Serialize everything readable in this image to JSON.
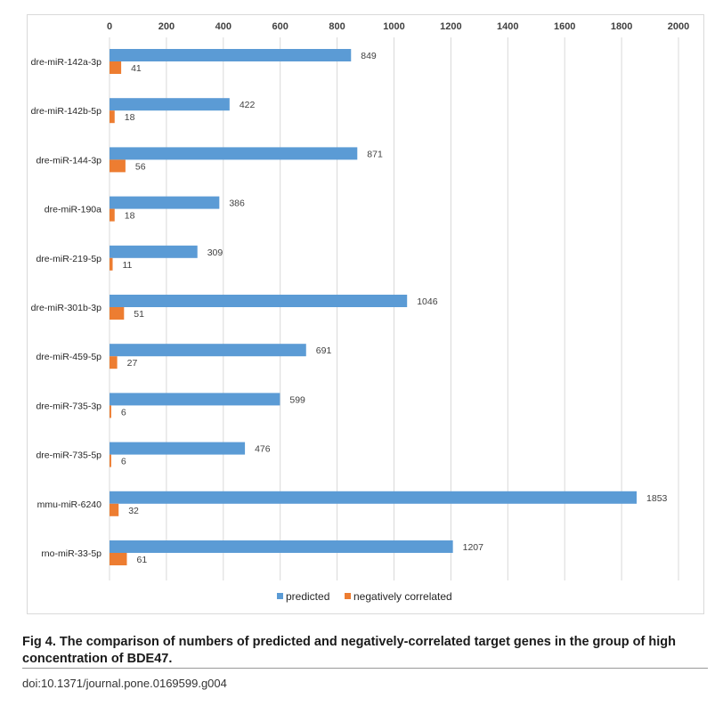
{
  "chart_data": {
    "type": "bar",
    "orientation": "horizontal",
    "title": "",
    "xlabel": "",
    "ylabel": "",
    "xlim": [
      0,
      2000
    ],
    "x_ticks": [
      0,
      200,
      400,
      600,
      800,
      1000,
      1200,
      1400,
      1600,
      1800,
      2000
    ],
    "x_tick_labels": [
      "0",
      "200",
      "400",
      "600",
      "800",
      "1000",
      "1200",
      "1400",
      "1600",
      "1800",
      "2000"
    ],
    "x_axis_position": "top",
    "grid": "vertical",
    "legend_position": "bottom",
    "categories": [
      "dre-miR-142a-3p",
      "dre-miR-142b-5p",
      "dre-miR-144-3p",
      "dre-miR-190a",
      "dre-miR-219-5p",
      "dre-miR-301b-3p",
      "dre-miR-459-5p",
      "dre-miR-735-3p",
      "dre-miR-735-5p",
      "mmu-miR-6240",
      "rno-miR-33-5p"
    ],
    "series": [
      {
        "name": "predicted",
        "color": "#5b9bd5",
        "values": [
          849,
          422,
          871,
          386,
          309,
          1046,
          691,
          599,
          476,
          1853,
          1207
        ]
      },
      {
        "name": "negatively correlated",
        "color": "#ed7d31",
        "values": [
          41,
          18,
          56,
          18,
          11,
          51,
          27,
          6,
          6,
          32,
          61
        ]
      }
    ],
    "data_labels": true
  },
  "caption": {
    "label": "Fig 4.",
    "text": "The comparison of numbers of predicted and negatively-correlated target genes in the group of high concentration of BDE47."
  },
  "doi": "doi:10.1371/journal.pone.0169599.g004",
  "colors": {
    "grid": "#d9d9d9",
    "frame": "#d9d9d9"
  }
}
